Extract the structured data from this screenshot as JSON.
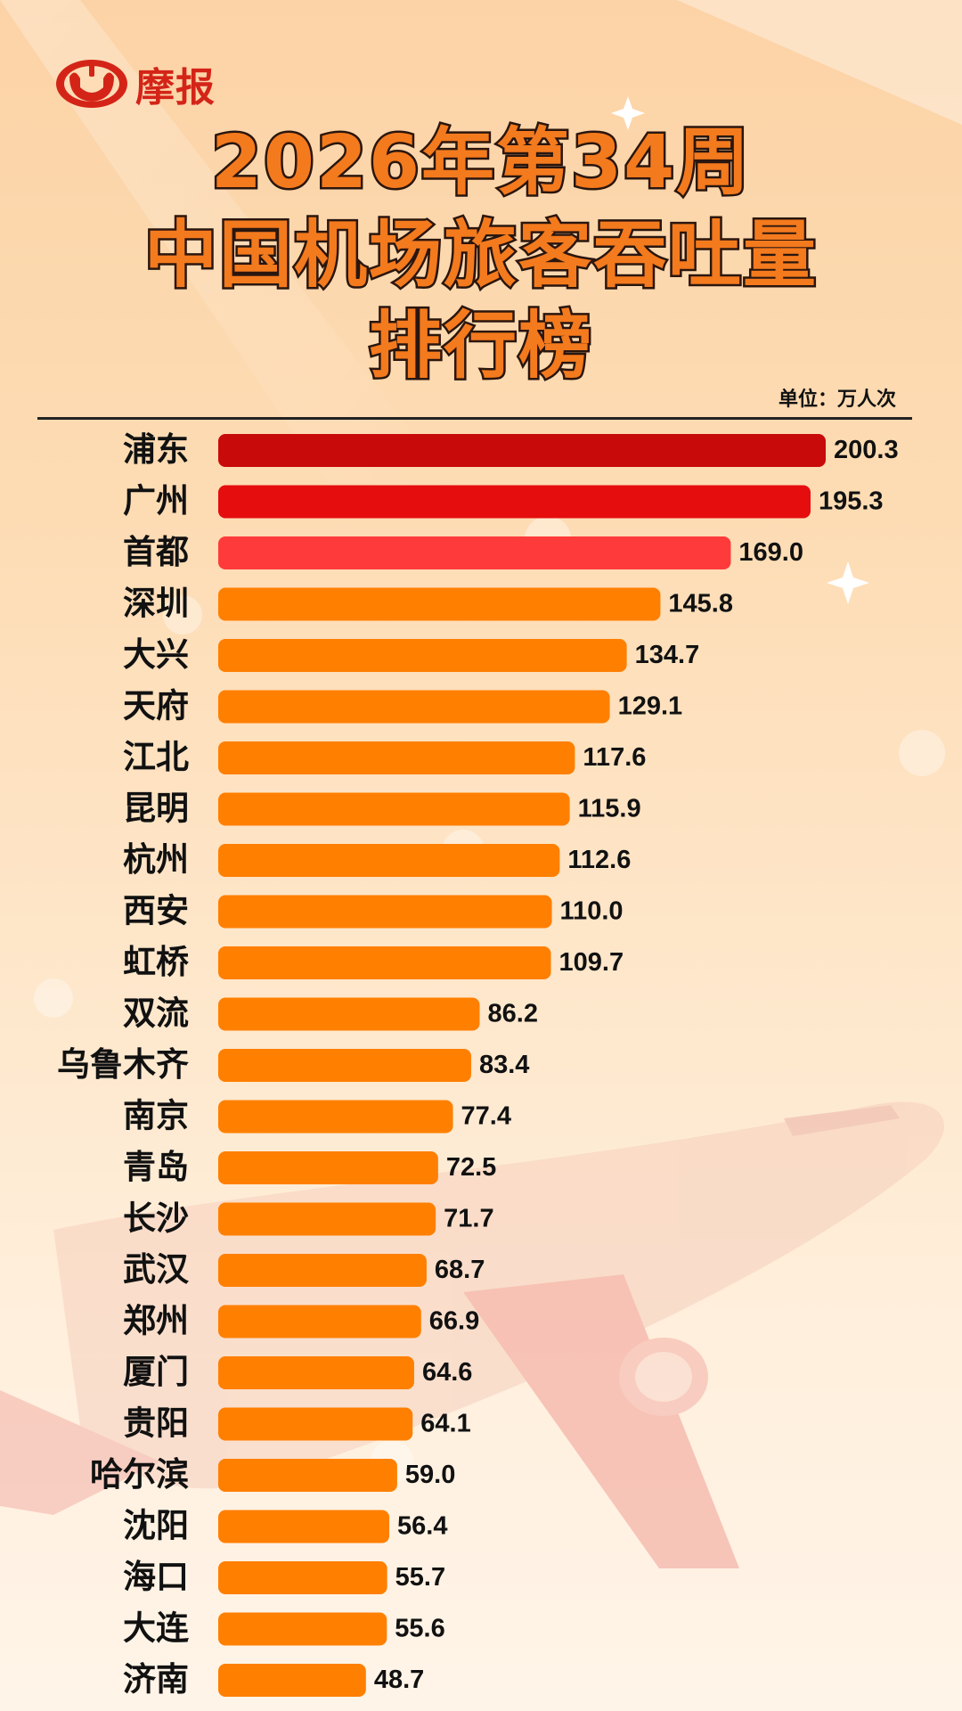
{
  "brand": {
    "name": "摩报",
    "color": "#d42418"
  },
  "title_lines": [
    "2026年第34周",
    "中国机场旅客吞吐量",
    "排行榜"
  ],
  "unit_label": "单位：万人次",
  "colors": {
    "rank1": "#c80a0a",
    "rank2": "#e50d0d",
    "rank3": "#ff3a3a",
    "default": "#ff7f00"
  },
  "chart_data": {
    "type": "bar",
    "orientation": "horizontal",
    "title": "2026年第34周中国机场旅客吞吐量排行榜",
    "unit": "万人次",
    "categories": [
      "浦东",
      "广州",
      "首都",
      "深圳",
      "大兴",
      "天府",
      "江北",
      "昆明",
      "杭州",
      "西安",
      "虹桥",
      "双流",
      "乌鲁木齐",
      "南京",
      "青岛",
      "长沙",
      "武汉",
      "郑州",
      "厦门",
      "贵阳",
      "哈尔滨",
      "沈阳",
      "海口",
      "大连",
      "济南"
    ],
    "values": [
      200.3,
      195.3,
      169.0,
      145.8,
      134.7,
      129.1,
      117.6,
      115.9,
      112.6,
      110.0,
      109.7,
      86.2,
      83.4,
      77.4,
      72.5,
      71.7,
      68.7,
      66.9,
      64.6,
      64.1,
      59.0,
      56.4,
      55.7,
      55.6,
      48.7
    ],
    "value_labels": [
      "200.3",
      "195.3",
      "169.0",
      "145.8",
      "134.7",
      "129.1",
      "117.6",
      "115.9",
      "112.6",
      "110.0",
      "109.7",
      "86.2",
      "83.4",
      "77.4",
      "72.5",
      "71.7",
      "68.7",
      "66.9",
      "64.6",
      "64.1",
      "59.0",
      "56.4",
      "55.7",
      "55.6",
      "48.7"
    ],
    "xlim": [
      0,
      200.3
    ],
    "grid": false,
    "legend": "none"
  }
}
